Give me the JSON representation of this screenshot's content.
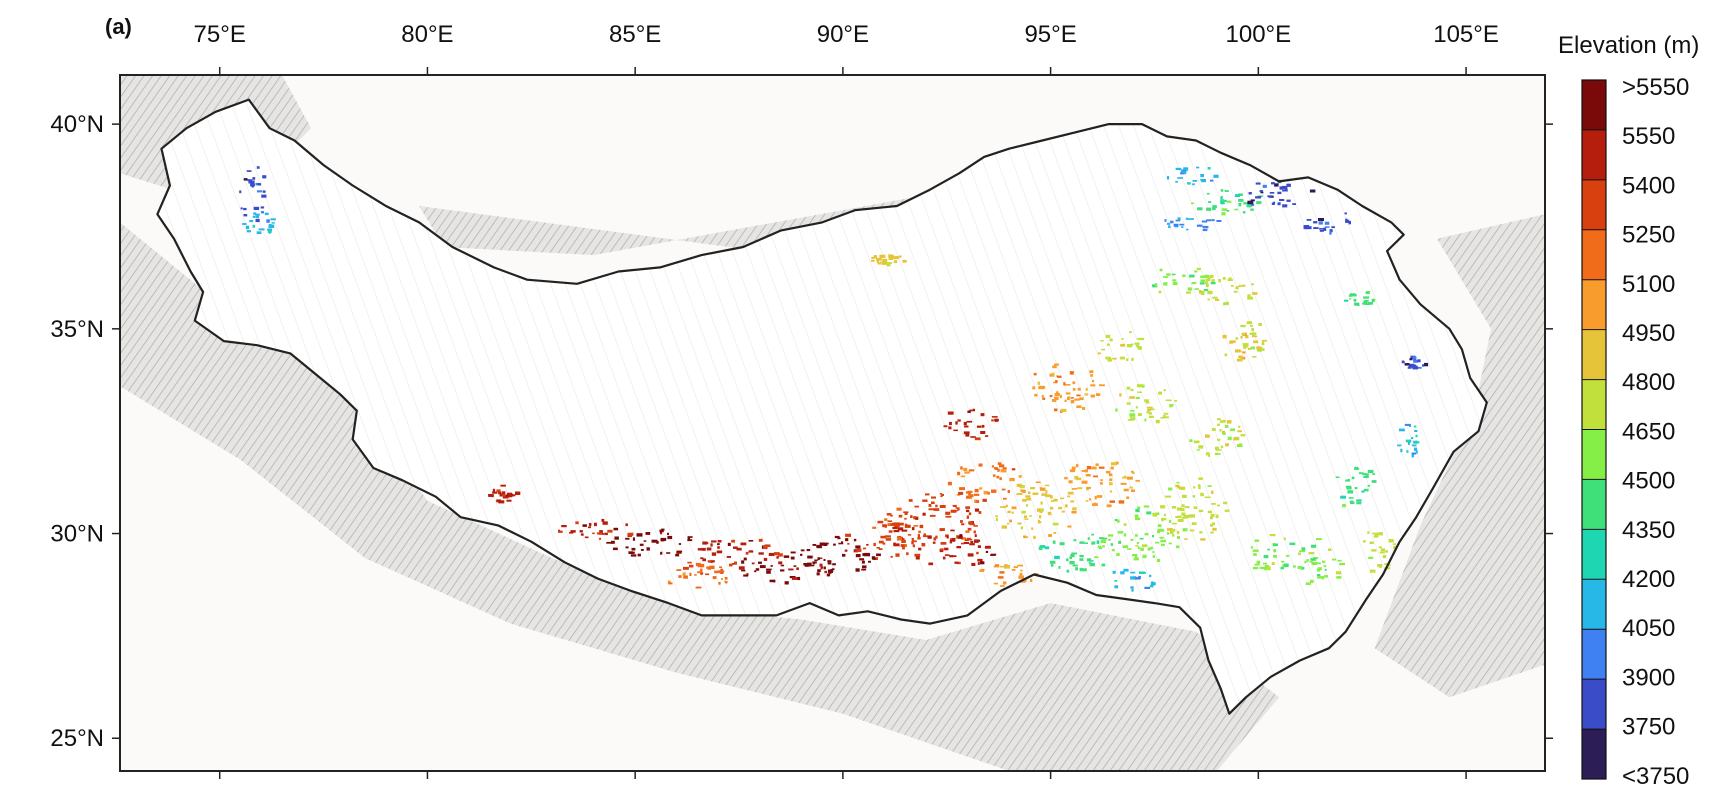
{
  "panel_label": "(a)",
  "legend": {
    "title": "Elevation (m)",
    "classes": [
      {
        "label": ">5550",
        "color": "#7a0a0a"
      },
      {
        "label": "5550",
        "color": "#b51d0c"
      },
      {
        "label": "5400",
        "color": "#d9400f"
      },
      {
        "label": "5250",
        "color": "#f06c1a"
      },
      {
        "label": "5100",
        "color": "#f99c2e"
      },
      {
        "label": "4950",
        "color": "#e6c43a"
      },
      {
        "label": "4800",
        "color": "#c2e03c"
      },
      {
        "label": "4650",
        "color": "#86ef47"
      },
      {
        "label": "4500",
        "color": "#3fe07a"
      },
      {
        "label": "4350",
        "color": "#1ed6b2"
      },
      {
        "label": "4200",
        "color": "#27b8e8"
      },
      {
        "label": "4050",
        "color": "#3f80f2"
      },
      {
        "label": "3900",
        "color": "#3b4cc8"
      },
      {
        "label": "3750",
        "color": "#2c1d56"
      },
      {
        "label": "<3750",
        "color": "#2c1d56"
      }
    ]
  },
  "map": {
    "lon_min": 72.6,
    "lon_max": 106.9,
    "lat_min": 24.2,
    "lat_max": 41.2,
    "lon_ticks": [
      {
        "value": 75,
        "label": "75°E"
      },
      {
        "value": 80,
        "label": "80°E"
      },
      {
        "value": 85,
        "label": "85°E"
      },
      {
        "value": 90,
        "label": "90°E"
      },
      {
        "value": 95,
        "label": "95°E"
      },
      {
        "value": 100,
        "label": "100°E"
      },
      {
        "value": 105,
        "label": "105°E"
      }
    ],
    "lat_ticks": [
      {
        "value": 40,
        "label": "40°N"
      },
      {
        "value": 35,
        "label": "35°N"
      },
      {
        "value": 30,
        "label": "30°N"
      },
      {
        "value": 25,
        "label": "25°N"
      }
    ],
    "boundary_name": "Tibetan Plateau boundary",
    "boundary_color": "#222222",
    "terrain_shade_color": "#8a8580",
    "boundary": [
      [
        73.6,
        39.4
      ],
      [
        74.2,
        39.9
      ],
      [
        74.9,
        40.3
      ],
      [
        75.7,
        40.6
      ],
      [
        76.2,
        39.9
      ],
      [
        76.8,
        39.6
      ],
      [
        77.5,
        39.0
      ],
      [
        78.2,
        38.5
      ],
      [
        79.0,
        38.0
      ],
      [
        79.8,
        37.6
      ],
      [
        80.6,
        37.0
      ],
      [
        81.6,
        36.5
      ],
      [
        82.4,
        36.2
      ],
      [
        83.6,
        36.1
      ],
      [
        84.6,
        36.4
      ],
      [
        85.6,
        36.5
      ],
      [
        86.6,
        36.8
      ],
      [
        87.6,
        37.0
      ],
      [
        88.5,
        37.4
      ],
      [
        89.5,
        37.6
      ],
      [
        90.3,
        37.9
      ],
      [
        91.3,
        38.0
      ],
      [
        92.1,
        38.4
      ],
      [
        92.8,
        38.8
      ],
      [
        93.4,
        39.2
      ],
      [
        94.0,
        39.4
      ],
      [
        94.8,
        39.6
      ],
      [
        95.6,
        39.8
      ],
      [
        96.4,
        40.0
      ],
      [
        97.2,
        40.0
      ],
      [
        97.8,
        39.7
      ],
      [
        98.5,
        39.6
      ],
      [
        99.1,
        39.3
      ],
      [
        99.8,
        39.0
      ],
      [
        100.5,
        38.6
      ],
      [
        101.2,
        38.7
      ],
      [
        101.9,
        38.4
      ],
      [
        102.5,
        38.0
      ],
      [
        103.2,
        37.6
      ],
      [
        103.5,
        37.3
      ],
      [
        103.1,
        36.9
      ],
      [
        103.4,
        36.2
      ],
      [
        103.9,
        35.6
      ],
      [
        104.6,
        35.0
      ],
      [
        104.9,
        34.5
      ],
      [
        105.1,
        33.8
      ],
      [
        105.5,
        33.2
      ],
      [
        105.3,
        32.5
      ],
      [
        104.7,
        32.0
      ],
      [
        104.2,
        31.1
      ],
      [
        103.8,
        30.4
      ],
      [
        103.4,
        29.8
      ],
      [
        103.0,
        29.0
      ],
      [
        102.6,
        28.4
      ],
      [
        102.1,
        27.6
      ],
      [
        101.7,
        27.2
      ],
      [
        101.0,
        26.9
      ],
      [
        100.3,
        26.5
      ],
      [
        99.7,
        26.0
      ],
      [
        99.3,
        25.6
      ],
      [
        99.1,
        26.2
      ],
      [
        98.8,
        26.9
      ],
      [
        98.6,
        27.7
      ],
      [
        98.1,
        28.2
      ],
      [
        97.5,
        28.3
      ],
      [
        96.8,
        28.4
      ],
      [
        96.1,
        28.5
      ],
      [
        95.4,
        28.8
      ],
      [
        94.6,
        29.0
      ],
      [
        93.8,
        28.6
      ],
      [
        93.0,
        28.0
      ],
      [
        92.1,
        27.8
      ],
      [
        91.4,
        27.9
      ],
      [
        90.6,
        28.1
      ],
      [
        89.9,
        28.0
      ],
      [
        89.2,
        28.3
      ],
      [
        88.4,
        28.0
      ],
      [
        87.5,
        28.0
      ],
      [
        86.6,
        28.0
      ],
      [
        85.8,
        28.3
      ],
      [
        84.9,
        28.6
      ],
      [
        84.1,
        28.9
      ],
      [
        83.3,
        29.3
      ],
      [
        82.5,
        29.8
      ],
      [
        81.7,
        30.2
      ],
      [
        80.8,
        30.4
      ],
      [
        80.2,
        30.9
      ],
      [
        79.4,
        31.3
      ],
      [
        78.7,
        31.6
      ],
      [
        78.2,
        32.3
      ],
      [
        78.3,
        33.0
      ],
      [
        77.9,
        33.4
      ],
      [
        77.3,
        33.9
      ],
      [
        76.7,
        34.4
      ],
      [
        75.9,
        34.6
      ],
      [
        75.1,
        34.7
      ],
      [
        74.4,
        35.2
      ],
      [
        74.6,
        35.9
      ],
      [
        74.3,
        36.4
      ],
      [
        73.9,
        37.2
      ],
      [
        73.5,
        37.8
      ],
      [
        73.8,
        38.5
      ],
      [
        73.6,
        39.4
      ]
    ],
    "terrain_shade_regions": [
      [
        [
          72.6,
          37.6
        ],
        [
          75.5,
          35.2
        ],
        [
          78.0,
          33.6
        ],
        [
          80.0,
          30.8
        ],
        [
          83.0,
          29.4
        ],
        [
          86.0,
          28.2
        ],
        [
          89.0,
          27.9
        ],
        [
          92.0,
          27.4
        ],
        [
          95.0,
          28.3
        ],
        [
          98.5,
          27.6
        ],
        [
          100.5,
          26.0
        ],
        [
          99.0,
          24.2
        ],
        [
          94.0,
          24.2
        ],
        [
          90.0,
          25.6
        ],
        [
          86.0,
          26.6
        ],
        [
          82.0,
          27.8
        ],
        [
          78.5,
          29.4
        ],
        [
          75.5,
          31.8
        ],
        [
          72.6,
          33.6
        ]
      ],
      [
        [
          72.6,
          41.2
        ],
        [
          76.5,
          41.2
        ],
        [
          77.2,
          39.9
        ],
        [
          76.2,
          38.9
        ],
        [
          74.5,
          38.2
        ],
        [
          72.6,
          38.8
        ]
      ],
      [
        [
          104.3,
          37.2
        ],
        [
          106.9,
          37.8
        ],
        [
          106.9,
          26.8
        ],
        [
          104.6,
          26.0
        ],
        [
          102.8,
          27.2
        ],
        [
          103.9,
          30.2
        ],
        [
          105.2,
          33.0
        ],
        [
          105.6,
          35.0
        ]
      ],
      [
        [
          79.8,
          38.0
        ],
        [
          88.0,
          36.9
        ],
        [
          93.2,
          38.0
        ],
        [
          97.5,
          39.4
        ],
        [
          96.0,
          39.0
        ],
        [
          90.0,
          37.9
        ],
        [
          84.0,
          36.8
        ],
        [
          80.4,
          37.0
        ]
      ]
    ],
    "elevation_clusters": [
      {
        "lon": 75.8,
        "lat": 38.3,
        "rx": 0.35,
        "ry": 0.7,
        "class": 12
      },
      {
        "lon": 75.9,
        "lat": 37.6,
        "rx": 0.45,
        "ry": 0.3,
        "class": 10
      },
      {
        "lon": 81.8,
        "lat": 31.0,
        "rx": 0.35,
        "ry": 0.2,
        "class": 1
      },
      {
        "lon": 84.0,
        "lat": 30.1,
        "rx": 0.9,
        "ry": 0.3,
        "class": 1
      },
      {
        "lon": 85.4,
        "lat": 29.8,
        "rx": 1.1,
        "ry": 0.35,
        "class": 0
      },
      {
        "lon": 86.6,
        "lat": 29.0,
        "rx": 1.0,
        "ry": 0.35,
        "class": 3
      },
      {
        "lon": 87.5,
        "lat": 29.6,
        "rx": 1.1,
        "ry": 0.4,
        "class": 1
      },
      {
        "lon": 88.6,
        "lat": 29.2,
        "rx": 1.2,
        "ry": 0.4,
        "class": 0
      },
      {
        "lon": 89.9,
        "lat": 29.5,
        "rx": 1.0,
        "ry": 0.45,
        "class": 0
      },
      {
        "lon": 91.0,
        "lat": 29.9,
        "rx": 1.0,
        "ry": 0.5,
        "class": 2
      },
      {
        "lon": 92.2,
        "lat": 30.3,
        "rx": 1.2,
        "ry": 0.7,
        "class": 2
      },
      {
        "lon": 92.6,
        "lat": 29.6,
        "rx": 1.0,
        "ry": 0.4,
        "class": 1
      },
      {
        "lon": 93.4,
        "lat": 31.3,
        "rx": 0.9,
        "ry": 0.5,
        "class": 3
      },
      {
        "lon": 93.0,
        "lat": 32.7,
        "rx": 0.7,
        "ry": 0.4,
        "class": 1
      },
      {
        "lon": 94.6,
        "lat": 30.6,
        "rx": 1.0,
        "ry": 0.7,
        "class": 5
      },
      {
        "lon": 95.6,
        "lat": 29.6,
        "rx": 0.9,
        "ry": 0.5,
        "class": 8
      },
      {
        "lon": 94.0,
        "lat": 29.0,
        "rx": 0.8,
        "ry": 0.3,
        "class": 4
      },
      {
        "lon": 96.2,
        "lat": 31.3,
        "rx": 0.9,
        "ry": 0.6,
        "class": 4
      },
      {
        "lon": 95.3,
        "lat": 33.6,
        "rx": 0.9,
        "ry": 0.6,
        "class": 4
      },
      {
        "lon": 96.6,
        "lat": 34.6,
        "rx": 0.6,
        "ry": 0.4,
        "class": 6
      },
      {
        "lon": 97.3,
        "lat": 33.2,
        "rx": 0.8,
        "ry": 0.5,
        "class": 6
      },
      {
        "lon": 97.2,
        "lat": 30.0,
        "rx": 0.9,
        "ry": 0.7,
        "class": 7
      },
      {
        "lon": 96.9,
        "lat": 28.9,
        "rx": 0.6,
        "ry": 0.3,
        "class": 10
      },
      {
        "lon": 98.4,
        "lat": 30.6,
        "rx": 0.8,
        "ry": 0.8,
        "class": 6
      },
      {
        "lon": 99.0,
        "lat": 32.4,
        "rx": 0.7,
        "ry": 0.5,
        "class": 6
      },
      {
        "lon": 99.5,
        "lat": 34.6,
        "rx": 0.5,
        "ry": 0.4,
        "class": 5
      },
      {
        "lon": 100.2,
        "lat": 29.6,
        "rx": 0.6,
        "ry": 0.5,
        "class": 7
      },
      {
        "lon": 101.4,
        "lat": 29.3,
        "rx": 0.6,
        "ry": 0.6,
        "class": 7
      },
      {
        "lon": 102.3,
        "lat": 31.2,
        "rx": 0.5,
        "ry": 0.6,
        "class": 8
      },
      {
        "lon": 102.8,
        "lat": 29.6,
        "rx": 0.5,
        "ry": 0.5,
        "class": 6
      },
      {
        "lon": 103.6,
        "lat": 32.3,
        "rx": 0.3,
        "ry": 0.4,
        "class": 10
      },
      {
        "lon": 103.7,
        "lat": 34.2,
        "rx": 0.3,
        "ry": 0.15,
        "class": 12
      },
      {
        "lon": 98.1,
        "lat": 36.2,
        "rx": 0.8,
        "ry": 0.35,
        "class": 7
      },
      {
        "lon": 99.2,
        "lat": 36.0,
        "rx": 0.7,
        "ry": 0.4,
        "class": 6
      },
      {
        "lon": 99.8,
        "lat": 34.8,
        "rx": 0.4,
        "ry": 0.4,
        "class": 6
      },
      {
        "lon": 98.3,
        "lat": 37.6,
        "rx": 0.8,
        "ry": 0.2,
        "class": 11
      },
      {
        "lon": 99.2,
        "lat": 38.1,
        "rx": 0.9,
        "ry": 0.35,
        "class": 8
      },
      {
        "lon": 98.3,
        "lat": 38.8,
        "rx": 0.7,
        "ry": 0.3,
        "class": 10
      },
      {
        "lon": 100.4,
        "lat": 38.3,
        "rx": 0.9,
        "ry": 0.35,
        "class": 12
      },
      {
        "lon": 101.7,
        "lat": 37.6,
        "rx": 0.7,
        "ry": 0.3,
        "class": 12
      },
      {
        "lon": 102.4,
        "lat": 35.8,
        "rx": 0.4,
        "ry": 0.2,
        "class": 8
      },
      {
        "lon": 91.0,
        "lat": 36.7,
        "rx": 0.5,
        "ry": 0.15,
        "class": 5
      }
    ]
  }
}
